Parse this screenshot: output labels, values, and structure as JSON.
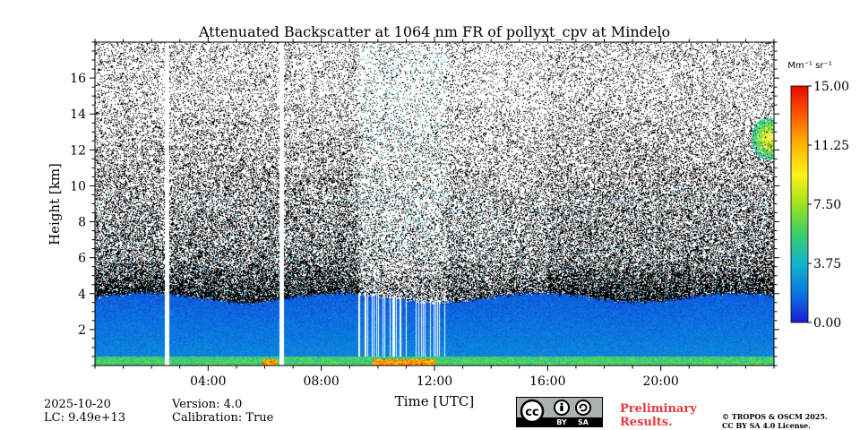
{
  "chart_data": {
    "type": "heatmap",
    "title": "Attenuated Backscatter at 1064 nm FR of pollyxt_cpv at Mindelo",
    "xlabel": "Time [UTC]",
    "ylabel": "Height [km]",
    "xlim_hours": [
      0,
      24
    ],
    "ylim_km": [
      0,
      18
    ],
    "x_ticks": [
      {
        "value": 4,
        "label": "04:00"
      },
      {
        "value": 8,
        "label": "08:00"
      },
      {
        "value": 12,
        "label": "12:00"
      },
      {
        "value": 16,
        "label": "16:00"
      },
      {
        "value": 20,
        "label": "20:00"
      }
    ],
    "y_ticks": [
      {
        "value": 2,
        "label": "2"
      },
      {
        "value": 4,
        "label": "4"
      },
      {
        "value": 6,
        "label": "6"
      },
      {
        "value": 8,
        "label": "8"
      },
      {
        "value": 10,
        "label": "10"
      },
      {
        "value": 12,
        "label": "12"
      },
      {
        "value": 14,
        "label": "14"
      },
      {
        "value": 16,
        "label": "16"
      }
    ],
    "colorbar": {
      "unit_label": "Mm⁻¹ sr⁻¹",
      "range": [
        0,
        15
      ],
      "ticks": [
        {
          "value": 0,
          "label": "0.00"
        },
        {
          "value": 3.75,
          "label": "3.75"
        },
        {
          "value": 7.5,
          "label": "7.50"
        },
        {
          "value": 11.25,
          "label": "11.25"
        },
        {
          "value": 15,
          "label": "15.00"
        }
      ],
      "colormap": [
        "#1a1ad6",
        "#0a78e0",
        "#12b4cc",
        "#3ccf6a",
        "#9ee21c",
        "#fff31a",
        "#ffb400",
        "#ff5a00",
        "#e60a00"
      ]
    },
    "data_gaps_hours": [
      [
        2.45,
        2.6
      ],
      [
        6.5,
        6.65
      ]
    ],
    "features": {
      "boundary_layer_top_km": 3.8,
      "noise_onset_km": 6.0,
      "elevated_cloud": {
        "hours": [
          23.0,
          24.0
        ],
        "km": [
          11.5,
          13.8
        ]
      },
      "strong_surface_signal_hours": [
        [
          5.9,
          6.4
        ],
        [
          9.8,
          12.0
        ]
      ]
    }
  },
  "footer": {
    "date": "2025-10-20",
    "lc": "LC: 9.49e+13",
    "version": "Version: 4.0",
    "calibration": "Calibration: True",
    "preliminary_line1": "Preliminary",
    "preliminary_line2": "Results.",
    "copyright_line1": "© TROPOS & OSCM 2025.",
    "copyright_line2": "CC BY SA 4.0 License.",
    "license_badge": {
      "cc": "cc",
      "by": "BY",
      "sa": "SA"
    }
  }
}
